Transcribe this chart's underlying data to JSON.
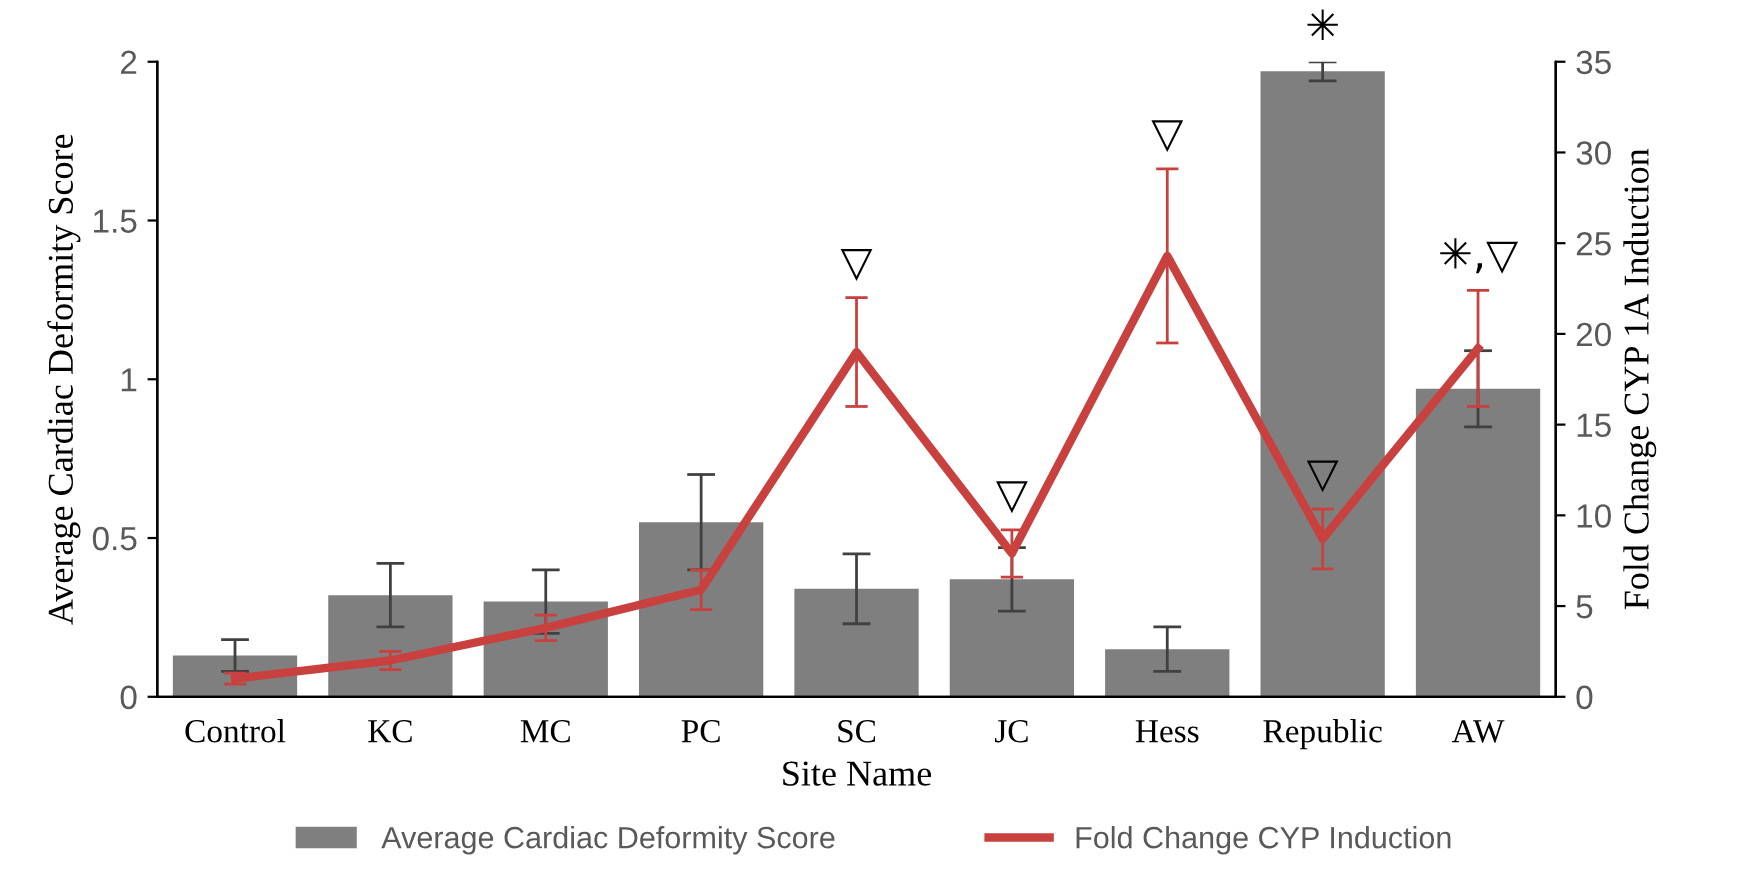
{
  "chart_data": {
    "type": "bar",
    "xlabel": "Site Name",
    "ylabel": "Average Cardiac Deformity Score",
    "y2label": "Fold Change CYP 1A Induction",
    "categories": [
      "Control",
      "KC",
      "MC",
      "PC",
      "SC",
      "JC",
      "Hess",
      "Republic",
      "AW"
    ],
    "series": [
      {
        "name": "Average Cardiac Deformity Score",
        "color": "#7f7f7f",
        "values": [
          0.13,
          0.32,
          0.3,
          0.55,
          0.34,
          0.37,
          0.15,
          1.97,
          0.97
        ],
        "errors": [
          0.05,
          0.1,
          0.1,
          0.15,
          0.11,
          0.1,
          0.07,
          0.03,
          0.12
        ],
        "value_labels": [
          null,
          null,
          null,
          null,
          null,
          null,
          null,
          "✳",
          null
        ]
      },
      {
        "name": "Fold Change CYP Induction",
        "type": "line",
        "axis": "y2",
        "color": "#c9413e",
        "values": [
          1,
          2,
          3.8,
          5.9,
          19.0,
          7.9,
          24.3,
          8.7,
          19.2
        ],
        "errors": [
          0.3,
          0.5,
          0.7,
          1.1,
          3,
          1.3,
          4.8,
          1.65,
          3.2
        ],
        "value_labels": [
          null,
          null,
          null,
          null,
          "▽",
          "▽",
          "▽",
          "▽",
          "✳,▽"
        ]
      }
    ],
    "ylim": [
      0,
      2
    ],
    "yticks": [
      0,
      0.5,
      1,
      1.5,
      2
    ],
    "y2lim": [
      0,
      35
    ],
    "y2ticks": [
      0,
      5,
      10,
      15,
      20,
      25,
      30,
      35
    ],
    "legend": "bottom",
    "grid": false
  }
}
